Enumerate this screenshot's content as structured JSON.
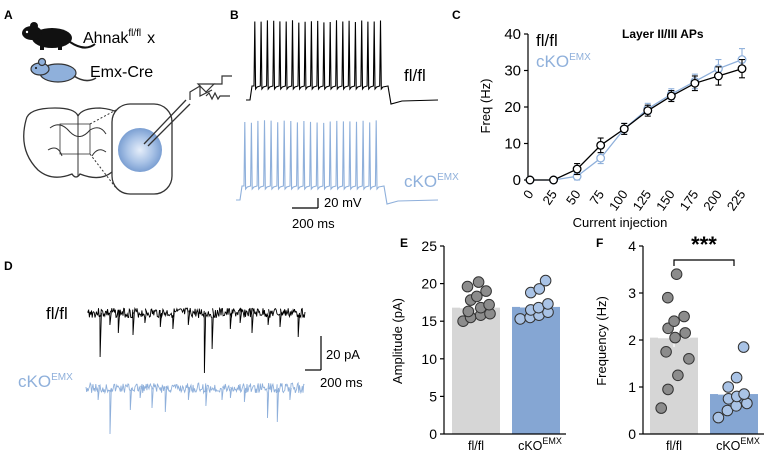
{
  "panels": {
    "a": "A",
    "b": "B",
    "c": "C",
    "d": "D",
    "e": "E",
    "f": "F"
  },
  "colors": {
    "ctrl": "#000000",
    "cko": "#8fb0db",
    "bar_ctrl": "#d6d6d6",
    "bar_cko": "#85a6d3",
    "dot_ctrl": "#8c8c8c",
    "dot_cko": "#a9c3e6"
  },
  "panel_a": {
    "gene": "Ahnak",
    "gene_sup": "fl/fl",
    "cross": "x",
    "cre": "Emx-Cre"
  },
  "panel_b": {
    "label_ctrl": "fl/fl",
    "label_cko": "cKO",
    "label_cko_sup": "EMX",
    "scale_v": "20 mV",
    "scale_t": "200 ms"
  },
  "panel_d": {
    "label_ctrl": "fl/fl",
    "label_cko": "cKO",
    "label_cko_sup": "EMX",
    "scale_a": "20 pA",
    "scale_t": "200 ms"
  },
  "chart_data": [
    {
      "type": "line",
      "title": "Layer II/III APs",
      "xlabel": "Current injection",
      "ylabel": "Freq (Hz)",
      "ylim": [
        0,
        40
      ],
      "yticks": [
        0,
        10,
        20,
        30,
        40
      ],
      "x": [
        0,
        25,
        50,
        75,
        100,
        125,
        150,
        175,
        200,
        225
      ],
      "legend": [
        {
          "text": "fl/fl",
          "sup": ""
        },
        {
          "text": "cKO",
          "sup": "EMX"
        }
      ],
      "series": [
        {
          "name": "fl/fl",
          "values": [
            0,
            0,
            3,
            9.5,
            14,
            19,
            23,
            26.5,
            28.5,
            30.5
          ],
          "err": [
            0,
            0,
            1.5,
            2,
            1.5,
            1.5,
            1.5,
            2,
            2.5,
            2.5
          ]
        },
        {
          "name": "cKO EMX",
          "values": [
            0,
            0,
            1,
            6,
            14,
            19.5,
            23.5,
            27,
            30.5,
            33
          ],
          "err": [
            0,
            0,
            1,
            1.5,
            1.5,
            1.5,
            1.5,
            2,
            2.5,
            3
          ]
        }
      ]
    },
    {
      "type": "bar",
      "ylabel": "Amplitude (pA)",
      "ylim": [
        0,
        25
      ],
      "yticks": [
        0,
        5,
        10,
        15,
        20,
        25
      ],
      "categories": [
        {
          "text": "fl/fl",
          "sup": ""
        },
        {
          "text": "cKO",
          "sup": "EMX"
        }
      ],
      "values": [
        16.8,
        16.9
      ],
      "err": [
        0.5,
        0.5
      ],
      "points": [
        [
          15,
          15.5,
          15.8,
          16,
          16.3,
          16.8,
          17.2,
          17.8,
          18.3,
          19,
          19.6,
          20.2
        ],
        [
          15.3,
          15.5,
          15.8,
          16.2,
          16.5,
          16.8,
          17.3,
          18.8,
          19.3,
          20.4
        ]
      ]
    },
    {
      "type": "bar",
      "ylabel": "Frequency  (Hz)",
      "ylim": [
        0,
        4
      ],
      "yticks": [
        0,
        1,
        2,
        3,
        4
      ],
      "categories": [
        {
          "text": "fl/fl",
          "sup": ""
        },
        {
          "text": "cKO",
          "sup": "EMX"
        }
      ],
      "values": [
        2.05,
        0.85
      ],
      "err": [
        0.2,
        0.12
      ],
      "significance": "***",
      "points": [
        [
          0.55,
          0.95,
          1.25,
          1.6,
          1.75,
          2.05,
          2.15,
          2.25,
          2.4,
          2.5,
          2.9,
          3.4
        ],
        [
          0.35,
          0.5,
          0.6,
          0.65,
          0.75,
          0.8,
          0.85,
          1.0,
          1.2,
          1.85
        ]
      ]
    }
  ]
}
